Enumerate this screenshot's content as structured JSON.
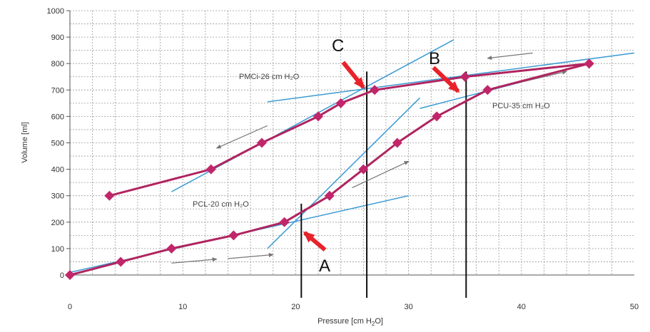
{
  "chart_data": {
    "type": "line",
    "xlabel": "Pressure [cm H2O]",
    "ylabel": "Volume [ml]",
    "xlim": [
      0,
      50
    ],
    "ylim": [
      0,
      1000
    ],
    "x_ticks": [
      0,
      10,
      20,
      30,
      40,
      50
    ],
    "y_ticks": [
      0,
      100,
      200,
      300,
      400,
      500,
      600,
      700,
      800,
      900,
      1000
    ],
    "grid": true,
    "colors": {
      "curve": "#b0245f",
      "marker": "#c1266a",
      "tangent": "#3b9ad4",
      "vline": "#111111",
      "pointer": "#e8222a",
      "flow_arrow": "#777777"
    },
    "series": [
      {
        "key": "inflation",
        "points": [
          [
            0,
            0
          ],
          [
            4.5,
            50
          ],
          [
            9,
            100
          ],
          [
            14.5,
            150
          ],
          [
            19,
            200
          ],
          [
            23,
            300
          ],
          [
            26,
            400
          ],
          [
            29,
            500
          ],
          [
            32.5,
            600
          ],
          [
            37,
            700
          ],
          [
            46,
            800
          ]
        ]
      },
      {
        "key": "deflation",
        "points": [
          [
            46,
            800
          ],
          [
            35,
            750
          ],
          [
            27,
            700
          ],
          [
            24,
            650
          ],
          [
            22,
            600
          ],
          [
            17,
            500
          ],
          [
            12.5,
            400
          ],
          [
            3.5,
            300
          ]
        ]
      }
    ],
    "tangent_lines": [
      [
        [
          0,
          10
        ],
        [
          30,
          300
        ]
      ],
      [
        [
          17.5,
          100
        ],
        [
          31,
          670
        ]
      ],
      [
        [
          31,
          630
        ],
        [
          40,
          730
        ]
      ],
      [
        [
          17.5,
          655
        ],
        [
          50,
          840
        ]
      ],
      [
        [
          9,
          315
        ],
        [
          34,
          890
        ]
      ]
    ],
    "vertical_lines": [
      20.5,
      26.3,
      35.1
    ],
    "annotations": {
      "pmci": "PMCi-26 cm H₂O",
      "pcu": "PCU-35 cm H₂O",
      "pcl": "PCL-20 cm H₂O",
      "label_a": "A",
      "label_b": "B",
      "label_c": "C"
    }
  }
}
